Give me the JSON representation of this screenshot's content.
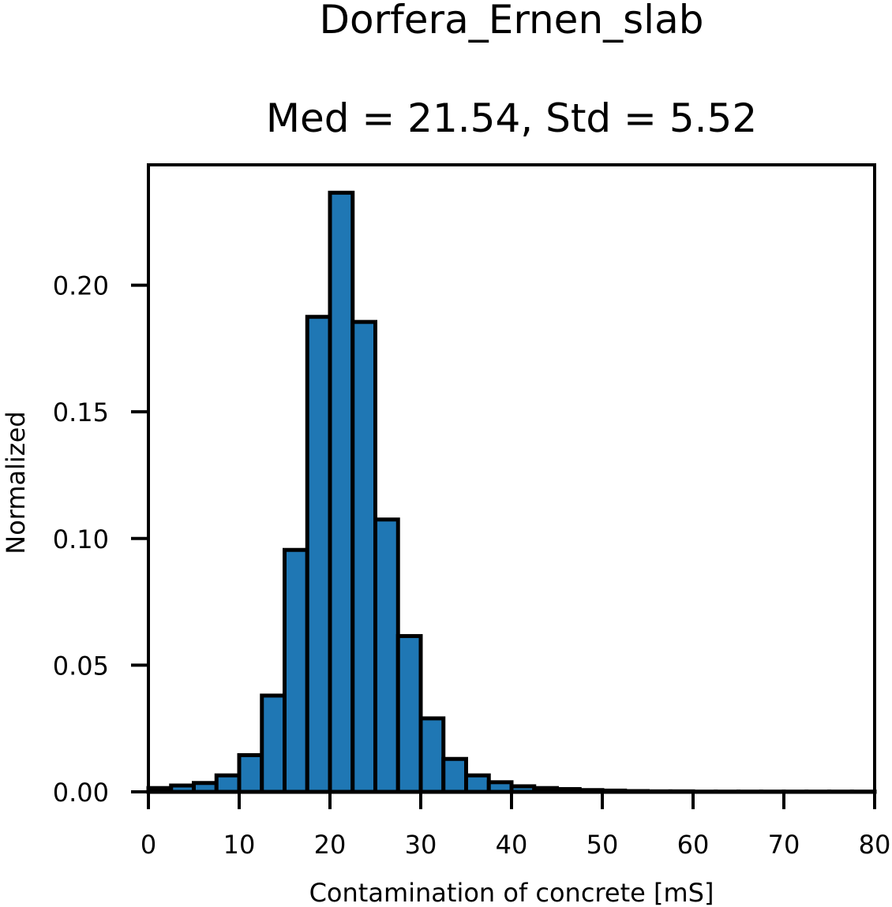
{
  "chart_data": {
    "type": "bar",
    "title": "Dorfera_Ernen_slab",
    "subtitle": "Med = 21.54, Std = 5.52",
    "xlabel": "Contamination of concrete [mS]",
    "ylabel": "Normalized",
    "xlim": [
      0,
      80
    ],
    "ylim": [
      0,
      0.2475
    ],
    "xticks": [
      0,
      10,
      20,
      30,
      40,
      50,
      60,
      70,
      80
    ],
    "xtick_labels": [
      "0",
      "10",
      "20",
      "30",
      "40",
      "50",
      "60",
      "70",
      "80"
    ],
    "yticks": [
      0.0,
      0.05,
      0.1,
      0.15,
      0.2
    ],
    "ytick_labels": [
      "0.00",
      "0.05",
      "0.10",
      "0.15",
      "0.20"
    ],
    "grid": false,
    "legend": "none",
    "bar_color": "#1f77b4",
    "edge_color": "#000000",
    "bin_width": 2.5,
    "bins": [
      {
        "x0": 0.0,
        "x1": 2.5,
        "value": 0.0015
      },
      {
        "x0": 2.5,
        "x1": 5.0,
        "value": 0.0025
      },
      {
        "x0": 5.0,
        "x1": 7.5,
        "value": 0.0035
      },
      {
        "x0": 7.5,
        "x1": 10.0,
        "value": 0.0065
      },
      {
        "x0": 10.0,
        "x1": 12.5,
        "value": 0.0145
      },
      {
        "x0": 12.5,
        "x1": 15.0,
        "value": 0.038
      },
      {
        "x0": 15.0,
        "x1": 17.5,
        "value": 0.0955
      },
      {
        "x0": 17.5,
        "x1": 20.0,
        "value": 0.1875
      },
      {
        "x0": 20.0,
        "x1": 22.5,
        "value": 0.2365
      },
      {
        "x0": 22.5,
        "x1": 25.0,
        "value": 0.1855
      },
      {
        "x0": 25.0,
        "x1": 27.5,
        "value": 0.1075
      },
      {
        "x0": 27.5,
        "x1": 30.0,
        "value": 0.0615
      },
      {
        "x0": 30.0,
        "x1": 32.5,
        "value": 0.029
      },
      {
        "x0": 32.5,
        "x1": 35.0,
        "value": 0.013
      },
      {
        "x0": 35.0,
        "x1": 37.5,
        "value": 0.0065
      },
      {
        "x0": 37.5,
        "x1": 40.0,
        "value": 0.0038
      },
      {
        "x0": 40.0,
        "x1": 42.5,
        "value": 0.0022
      },
      {
        "x0": 42.5,
        "x1": 45.0,
        "value": 0.0015
      },
      {
        "x0": 45.0,
        "x1": 47.5,
        "value": 0.0011
      },
      {
        "x0": 47.5,
        "x1": 50.0,
        "value": 0.0007
      },
      {
        "x0": 50.0,
        "x1": 52.5,
        "value": 0.0005
      },
      {
        "x0": 52.5,
        "x1": 55.0,
        "value": 0.0003
      },
      {
        "x0": 55.0,
        "x1": 57.5,
        "value": 0.0002
      },
      {
        "x0": 57.5,
        "x1": 60.0,
        "value": 0.0002
      },
      {
        "x0": 60.0,
        "x1": 62.5,
        "value": 0.0001
      },
      {
        "x0": 62.5,
        "x1": 65.0,
        "value": 0.0001
      },
      {
        "x0": 65.0,
        "x1": 67.5,
        "value": 0.0001
      },
      {
        "x0": 67.5,
        "x1": 70.0,
        "value": 0.0001
      },
      {
        "x0": 70.0,
        "x1": 72.5,
        "value": 0.0001
      },
      {
        "x0": 72.5,
        "x1": 75.0,
        "value": 0.0001
      },
      {
        "x0": 75.0,
        "x1": 77.5,
        "value": 0.0001
      },
      {
        "x0": 77.5,
        "x1": 80.0,
        "value": 0.0001
      }
    ]
  }
}
